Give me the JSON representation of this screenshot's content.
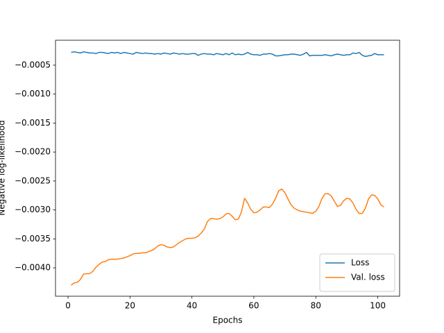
{
  "chart_data": {
    "type": "line",
    "xlabel": "Epochs",
    "ylabel": "Negative log-likelihood",
    "x": [
      1,
      2,
      3,
      4,
      5,
      6,
      7,
      8,
      9,
      10,
      11,
      12,
      13,
      14,
      15,
      16,
      17,
      18,
      19,
      20,
      21,
      22,
      23,
      24,
      25,
      26,
      27,
      28,
      29,
      30,
      31,
      32,
      33,
      34,
      35,
      36,
      37,
      38,
      39,
      40,
      41,
      42,
      43,
      44,
      45,
      46,
      47,
      48,
      49,
      50,
      51,
      52,
      53,
      54,
      55,
      56,
      57,
      58,
      59,
      60,
      61,
      62,
      63,
      64,
      65,
      66,
      67,
      68,
      69,
      70,
      71,
      72,
      73,
      74,
      75,
      76,
      77,
      78,
      79,
      80,
      81,
      82,
      83,
      84,
      85,
      86,
      87,
      88,
      89,
      90,
      91,
      92,
      93,
      94,
      95,
      96,
      97,
      98,
      99,
      100,
      101,
      102
    ],
    "series": [
      {
        "name": "Loss",
        "color": "#1f77b4",
        "values": [
          -0.00028,
          -0.00027,
          -0.00028,
          -0.00029,
          -0.00027,
          -0.00028,
          -0.00029,
          -0.00029,
          -0.0003,
          -0.00028,
          -0.00028,
          -0.00029,
          -0.0003,
          -0.00028,
          -0.00029,
          -0.00028,
          -0.0003,
          -0.00028,
          -0.00029,
          -0.0003,
          -0.00031,
          -0.00028,
          -0.00029,
          -0.0003,
          -0.00029,
          -0.0003,
          -0.0003,
          -0.00031,
          -0.0003,
          -0.00031,
          -0.00029,
          -0.0003,
          -0.00031,
          -0.00029,
          -0.0003,
          -0.00031,
          -0.0003,
          -0.00031,
          -0.00031,
          -0.0003,
          -0.0003,
          -0.00033,
          -0.00031,
          -0.0003,
          -0.00031,
          -0.00031,
          -0.00032,
          -0.0003,
          -0.00031,
          -0.00032,
          -0.0003,
          -0.00032,
          -0.00029,
          -0.00032,
          -0.00031,
          -0.00032,
          -0.00031,
          -0.00028,
          -0.00031,
          -0.00032,
          -0.00032,
          -0.00033,
          -0.00031,
          -0.00031,
          -0.0003,
          -0.00031,
          -0.00034,
          -0.00034,
          -0.00033,
          -0.00032,
          -0.00032,
          -0.00031,
          -0.00031,
          -0.00032,
          -0.00033,
          -0.00031,
          -0.00028,
          -0.00034,
          -0.00033,
          -0.00033,
          -0.00033,
          -0.00033,
          -0.00032,
          -0.00033,
          -0.00034,
          -0.00032,
          -0.00031,
          -0.00032,
          -0.00033,
          -0.00032,
          -0.00032,
          -0.00029,
          -0.0003,
          -0.00028,
          -0.00033,
          -0.00035,
          -0.00034,
          -0.00033,
          -0.0003,
          -0.00032,
          -0.00032,
          -0.00032
        ]
      },
      {
        "name": "Val. loss",
        "color": "#ff7f0e",
        "values": [
          -0.0043,
          -0.00426,
          -0.00425,
          -0.0042,
          -0.00411,
          -0.0041,
          -0.0041,
          -0.00406,
          -0.00399,
          -0.00394,
          -0.0039,
          -0.00389,
          -0.00386,
          -0.00385,
          -0.00385,
          -0.00385,
          -0.00384,
          -0.00383,
          -0.00381,
          -0.00379,
          -0.00376,
          -0.00375,
          -0.00375,
          -0.00374,
          -0.00374,
          -0.00372,
          -0.0037,
          -0.00367,
          -0.00362,
          -0.0036,
          -0.00361,
          -0.00364,
          -0.00365,
          -0.00364,
          -0.0036,
          -0.00356,
          -0.00353,
          -0.0035,
          -0.00349,
          -0.00349,
          -0.00348,
          -0.00345,
          -0.0034,
          -0.00333,
          -0.0032,
          -0.00315,
          -0.00315,
          -0.00316,
          -0.00315,
          -0.00312,
          -0.00307,
          -0.00306,
          -0.00311,
          -0.00317,
          -0.00316,
          -0.00303,
          -0.0028,
          -0.00288,
          -0.00299,
          -0.00305,
          -0.00304,
          -0.003,
          -0.00295,
          -0.00295,
          -0.00296,
          -0.0029,
          -0.0028,
          -0.00267,
          -0.00264,
          -0.0027,
          -0.00281,
          -0.00291,
          -0.00297,
          -0.003,
          -0.00302,
          -0.00303,
          -0.00304,
          -0.00305,
          -0.00306,
          -0.00302,
          -0.00294,
          -0.0028,
          -0.00272,
          -0.00272,
          -0.00276,
          -0.00285,
          -0.00294,
          -0.00292,
          -0.00284,
          -0.0028,
          -0.00281,
          -0.00288,
          -0.00299,
          -0.00306,
          -0.00306,
          -0.00297,
          -0.00281,
          -0.00274,
          -0.00275,
          -0.00281,
          -0.00291,
          -0.00295
        ]
      }
    ],
    "xlim": [
      -4.05,
      107.05
    ],
    "xticks": [
      0,
      20,
      40,
      60,
      80,
      100
    ],
    "ylim": [
      -0.00449,
      -7e-05
    ],
    "yticks": [
      {
        "value": -0.004,
        "label": "−0.0040"
      },
      {
        "value": -0.0035,
        "label": "−0.0035"
      },
      {
        "value": -0.003,
        "label": "−0.0030"
      },
      {
        "value": -0.0025,
        "label": "−0.0025"
      },
      {
        "value": -0.002,
        "label": "−0.0020"
      },
      {
        "value": -0.0015,
        "label": "−0.0015"
      },
      {
        "value": -0.001,
        "label": "−0.0010"
      },
      {
        "value": -0.0005,
        "label": "−0.0005"
      }
    ],
    "grid": false,
    "legend": "lower right"
  }
}
